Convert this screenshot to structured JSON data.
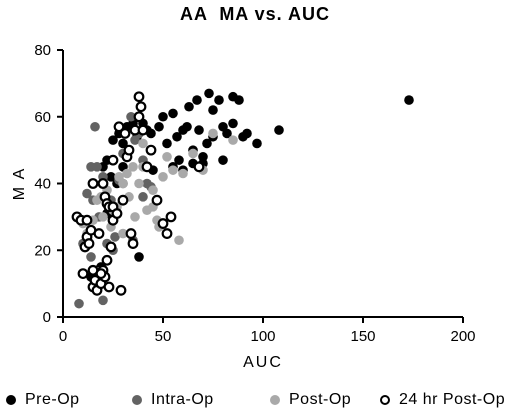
{
  "chart_data": {
    "type": "scatter",
    "title": "AA  MA vs. AUC",
    "xlabel": "AUC",
    "ylabel": "M A",
    "xlim": [
      0,
      200
    ],
    "ylim": [
      0,
      80
    ],
    "xticks": [
      "0",
      "50",
      "100",
      "150",
      "200"
    ],
    "yticks": [
      "0",
      "20",
      "40",
      "60",
      "80"
    ],
    "grid": false,
    "legend_position": "bottom",
    "series": [
      {
        "name": "Pre-Op",
        "style": "filled",
        "color": "#000000",
        "points": [
          [
            25,
            53
          ],
          [
            28,
            55
          ],
          [
            30,
            52
          ],
          [
            32,
            57
          ],
          [
            35,
            58
          ],
          [
            37,
            54
          ],
          [
            38,
            60
          ],
          [
            40,
            58
          ],
          [
            42,
            56
          ],
          [
            44,
            55
          ],
          [
            48,
            57
          ],
          [
            50,
            60
          ],
          [
            52,
            52
          ],
          [
            55,
            61
          ],
          [
            57,
            54
          ],
          [
            58,
            47
          ],
          [
            60,
            56
          ],
          [
            62,
            57
          ],
          [
            63,
            63
          ],
          [
            65,
            50
          ],
          [
            67,
            65
          ],
          [
            68,
            56
          ],
          [
            70,
            48
          ],
          [
            72,
            52
          ],
          [
            73,
            67
          ],
          [
            75,
            62
          ],
          [
            75,
            54
          ],
          [
            78,
            65
          ],
          [
            80,
            57
          ],
          [
            80,
            47
          ],
          [
            82,
            55
          ],
          [
            85,
            58
          ],
          [
            85,
            66
          ],
          [
            88,
            65
          ],
          [
            90,
            54
          ],
          [
            92,
            55
          ],
          [
            97,
            52
          ],
          [
            108,
            56
          ],
          [
            173,
            65
          ],
          [
            20,
            45
          ],
          [
            22,
            47
          ],
          [
            22,
            31
          ],
          [
            27,
            40
          ],
          [
            38,
            18
          ],
          [
            30,
            45
          ],
          [
            24,
            42
          ],
          [
            19,
            15
          ],
          [
            14,
            12
          ],
          [
            55,
            45
          ],
          [
            60,
            44
          ],
          [
            65,
            46
          ],
          [
            70,
            46
          ],
          [
            45,
            44
          ],
          [
            44,
            50
          ]
        ]
      },
      {
        "name": "Intra-Op",
        "style": "filled",
        "color": "#636363",
        "points": [
          [
            8,
            4
          ],
          [
            14,
            45
          ],
          [
            16,
            57
          ],
          [
            17,
            45
          ],
          [
            18,
            30
          ],
          [
            20,
            42
          ],
          [
            20,
            5
          ],
          [
            22,
            22
          ],
          [
            25,
            20
          ],
          [
            26,
            24
          ],
          [
            28,
            41
          ],
          [
            30,
            49
          ],
          [
            32,
            48
          ],
          [
            34,
            60
          ],
          [
            35,
            23
          ],
          [
            36,
            53
          ],
          [
            38,
            55
          ],
          [
            40,
            47
          ],
          [
            42,
            40
          ],
          [
            44,
            39
          ],
          [
            12,
            37
          ],
          [
            15,
            35
          ],
          [
            24,
            35
          ],
          [
            30,
            40
          ],
          [
            10,
            22
          ],
          [
            18,
            10
          ],
          [
            14,
            18
          ],
          [
            40,
            36
          ]
        ]
      },
      {
        "name": "Post-Op",
        "style": "filled",
        "color": "#a9a9a9",
        "points": [
          [
            10,
            28
          ],
          [
            12,
            25
          ],
          [
            15,
            29
          ],
          [
            17,
            35
          ],
          [
            18,
            12
          ],
          [
            19,
            36
          ],
          [
            20,
            30
          ],
          [
            22,
            38
          ],
          [
            24,
            27
          ],
          [
            25,
            32
          ],
          [
            27,
            33
          ],
          [
            28,
            42
          ],
          [
            30,
            40
          ],
          [
            32,
            43
          ],
          [
            33,
            36
          ],
          [
            35,
            45
          ],
          [
            36,
            30
          ],
          [
            38,
            40
          ],
          [
            40,
            52
          ],
          [
            42,
            32
          ],
          [
            45,
            33
          ],
          [
            47,
            29
          ],
          [
            48,
            27
          ],
          [
            50,
            42
          ],
          [
            52,
            48
          ],
          [
            55,
            44
          ],
          [
            58,
            23
          ],
          [
            60,
            43
          ],
          [
            65,
            49
          ],
          [
            70,
            44
          ],
          [
            75,
            55
          ],
          [
            85,
            53
          ],
          [
            40,
            45
          ],
          [
            45,
            38
          ],
          [
            30,
            25
          ]
        ]
      },
      {
        "name": "24 hr Post-Op",
        "style": "open",
        "color": "#000000",
        "points": [
          [
            7,
            30
          ],
          [
            9,
            29
          ],
          [
            10,
            13
          ],
          [
            11,
            21
          ],
          [
            12,
            29
          ],
          [
            12,
            24
          ],
          [
            13,
            22
          ],
          [
            14,
            26
          ],
          [
            15,
            40
          ],
          [
            15,
            9
          ],
          [
            16,
            11
          ],
          [
            17,
            8
          ],
          [
            18,
            14
          ],
          [
            18,
            25
          ],
          [
            19,
            10
          ],
          [
            20,
            14
          ],
          [
            21,
            36
          ],
          [
            21,
            12
          ],
          [
            22,
            17
          ],
          [
            22,
            34
          ],
          [
            23,
            33
          ],
          [
            23,
            9
          ],
          [
            24,
            21
          ],
          [
            25,
            29
          ],
          [
            25,
            33
          ],
          [
            27,
            31
          ],
          [
            28,
            57
          ],
          [
            29,
            8
          ],
          [
            30,
            35
          ],
          [
            31,
            55
          ],
          [
            32,
            48
          ],
          [
            33,
            50
          ],
          [
            34,
            25
          ],
          [
            35,
            22
          ],
          [
            36,
            56
          ],
          [
            38,
            60
          ],
          [
            38,
            66
          ],
          [
            39,
            63
          ],
          [
            40,
            56
          ],
          [
            42,
            45
          ],
          [
            44,
            50
          ],
          [
            47,
            35
          ],
          [
            50,
            28
          ],
          [
            52,
            25
          ],
          [
            54,
            30
          ],
          [
            68,
            45
          ],
          [
            25,
            47
          ],
          [
            20,
            40
          ],
          [
            15,
            14
          ],
          [
            19,
            13
          ]
        ]
      }
    ]
  }
}
